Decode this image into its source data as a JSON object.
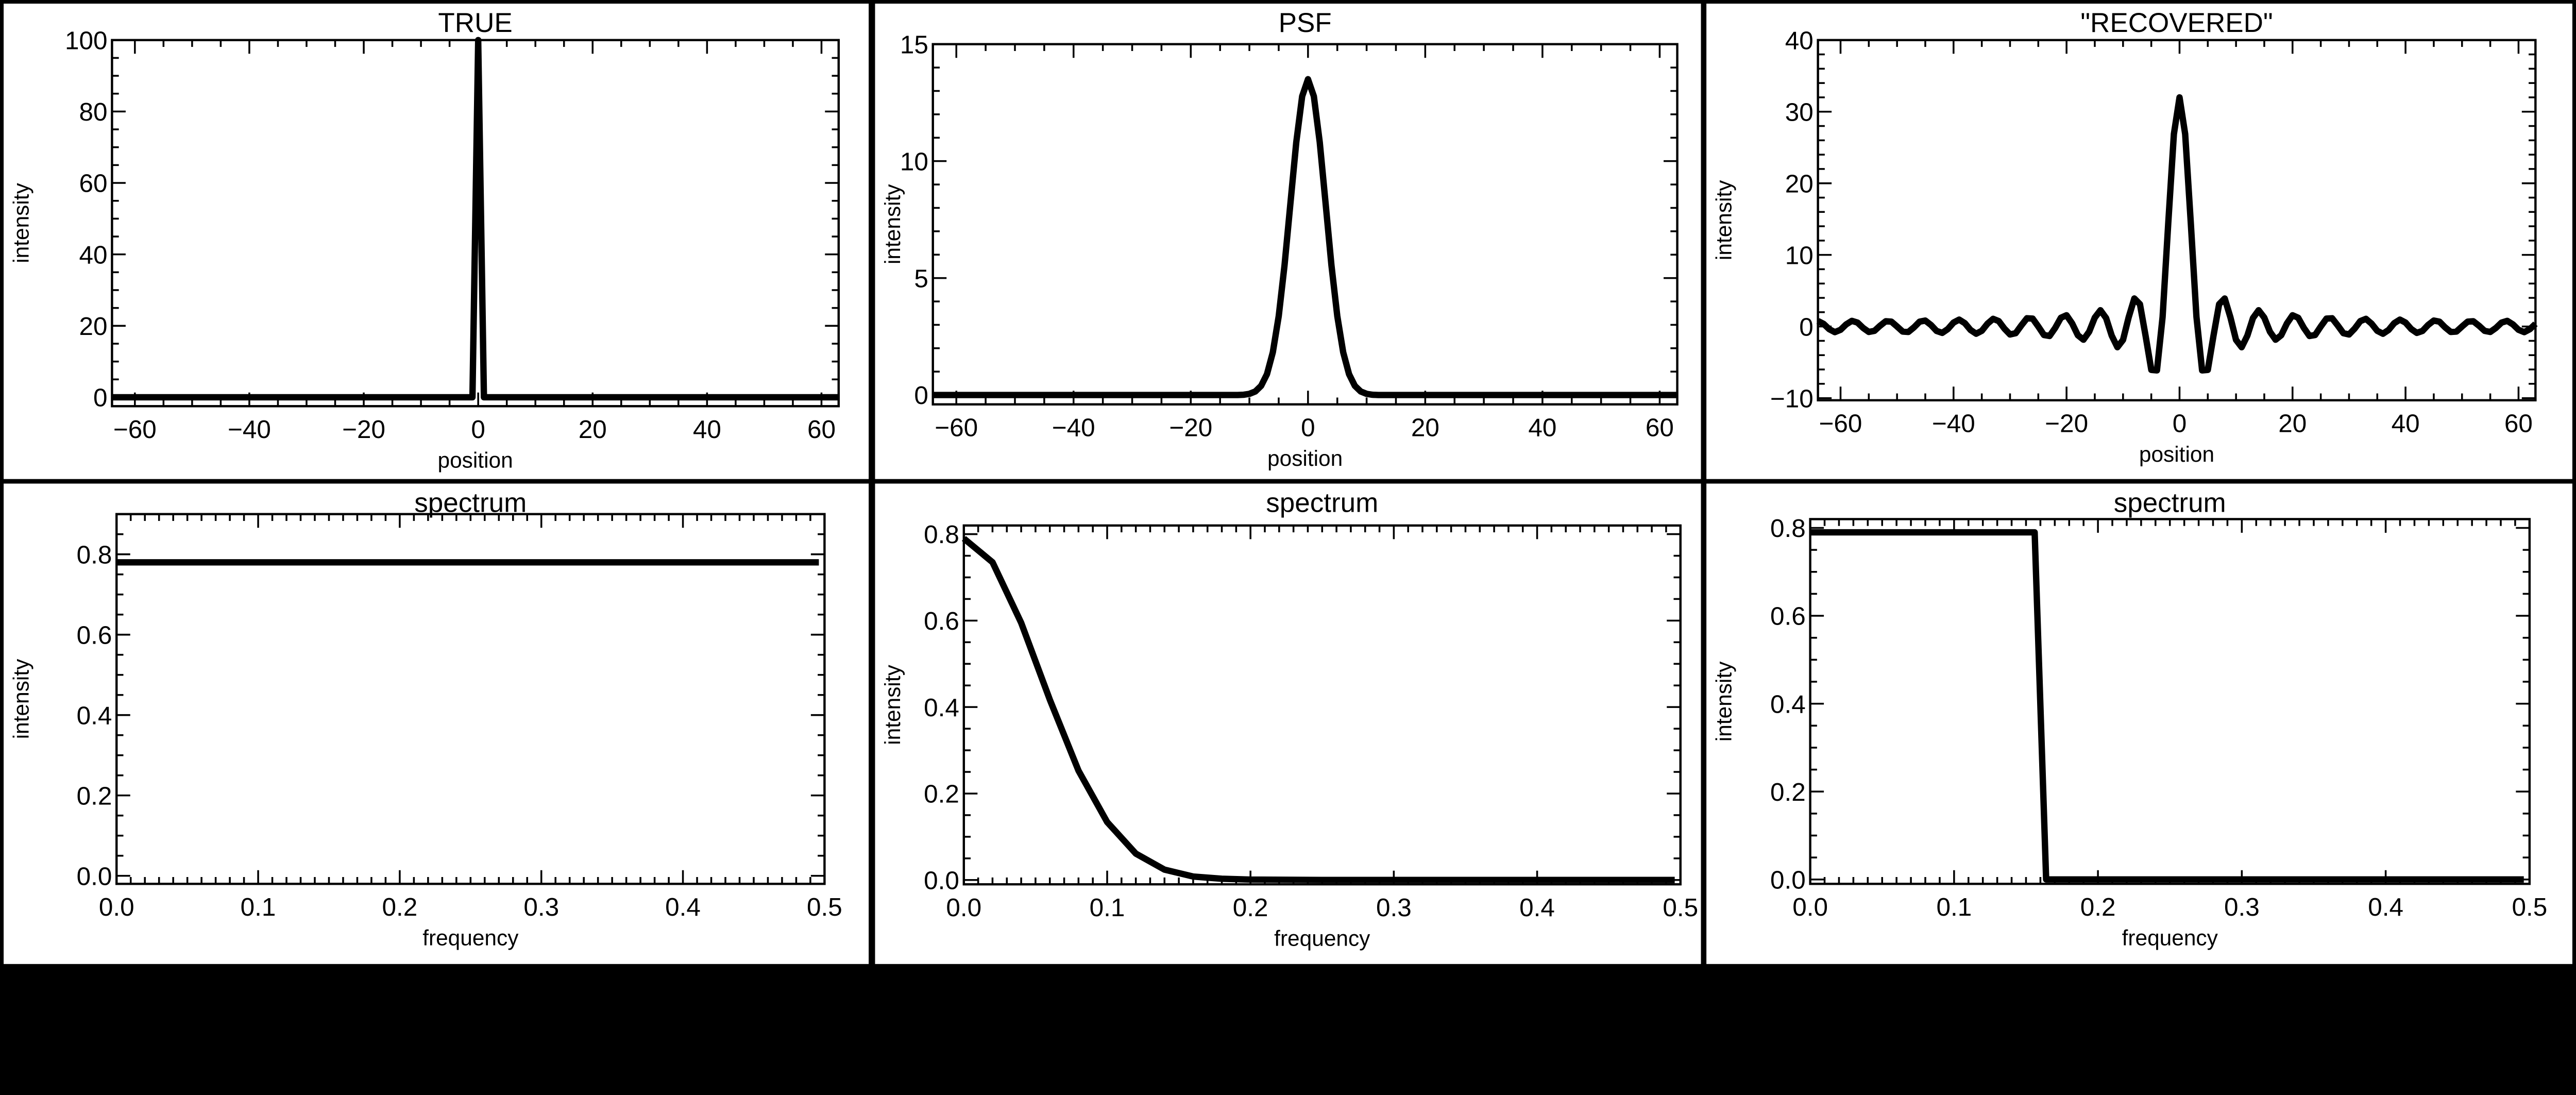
{
  "chart_data": [
    {
      "type": "line",
      "title": "TRUE",
      "xlabel": "position",
      "ylabel": "intensity",
      "xlim": [
        -64,
        63
      ],
      "ylim": [
        -2.5,
        100
      ],
      "xticks": [
        -60,
        -40,
        -20,
        0,
        20,
        40,
        60
      ],
      "yticks": [
        0,
        20,
        40,
        60,
        80,
        100
      ],
      "x_minor": 5,
      "y_minor": 5,
      "series": [
        {
          "x": [
            -64,
            -1,
            0,
            1,
            63
          ],
          "y": [
            0,
            0,
            100,
            0,
            0
          ]
        }
      ]
    },
    {
      "type": "line",
      "title": "PSF",
      "xlabel": "position",
      "ylabel": "intensity",
      "xlim": [
        -64,
        63
      ],
      "ylim": [
        -0.4,
        15
      ],
      "xticks": [
        -60,
        -40,
        -20,
        0,
        20,
        40,
        60
      ],
      "yticks": [
        0,
        5,
        10,
        15
      ],
      "x_minor": 5,
      "y_minor": 1,
      "series": [
        {
          "x": [
            -64,
            -12,
            -11,
            -10,
            -9,
            -8,
            -7,
            -6,
            -5,
            -4,
            -3,
            -2,
            -1,
            0,
            1,
            2,
            3,
            4,
            5,
            6,
            7,
            8,
            9,
            10,
            11,
            12,
            63
          ],
          "y": [
            0,
            0,
            0.01,
            0.05,
            0.15,
            0.39,
            0.89,
            1.83,
            3.37,
            5.55,
            8.19,
            10.81,
            12.77,
            13.5,
            12.77,
            10.81,
            8.19,
            5.55,
            3.37,
            1.83,
            0.89,
            0.39,
            0.15,
            0.05,
            0.01,
            0,
            0
          ]
        }
      ]
    },
    {
      "type": "line",
      "title": "\"RECOVERED\"",
      "xlabel": "position",
      "ylabel": "intensity",
      "xlim": [
        -64,
        63
      ],
      "ylim": [
        -10.3,
        40
      ],
      "xticks": [
        -60,
        -40,
        -20,
        0,
        20,
        40,
        60
      ],
      "yticks": [
        -10,
        0,
        10,
        20,
        30,
        40
      ],
      "x_minor": 5,
      "y_minor": 2,
      "series": [
        {
          "x": [
            -64,
            -63,
            -62,
            -61,
            -60,
            -59,
            -58,
            -57,
            -56,
            -55,
            -54,
            -53,
            -52,
            -51,
            -50,
            -49,
            -48,
            -47,
            -46,
            -45,
            -44,
            -43,
            -42,
            -41,
            -40,
            -39,
            -38,
            -37,
            -36,
            -35,
            -34,
            -33,
            -32,
            -31,
            -30,
            -29,
            -28,
            -27,
            -26,
            -25,
            -24,
            -23,
            -22,
            -21,
            -20,
            -19,
            -18,
            -17,
            -16,
            -15,
            -14,
            -13,
            -12,
            -11,
            -10,
            -9,
            -8,
            -7,
            -6,
            -5,
            -4,
            -3,
            -2,
            -1,
            0,
            1,
            2,
            3,
            4,
            5,
            6,
            7,
            8,
            9,
            10,
            11,
            12,
            13,
            14,
            15,
            16,
            17,
            18,
            19,
            20,
            21,
            22,
            23,
            24,
            25,
            26,
            27,
            28,
            29,
            30,
            31,
            32,
            33,
            34,
            35,
            36,
            37,
            38,
            39,
            40,
            41,
            42,
            43,
            44,
            45,
            46,
            47,
            48,
            49,
            50,
            51,
            52,
            53,
            54,
            55,
            56,
            57,
            58,
            59,
            60,
            61,
            62,
            63
          ],
          "y": [
            0.78,
            0.37,
            -0.38,
            -0.79,
            -0.46,
            0.3,
            0.79,
            0.55,
            -0.2,
            -0.76,
            -0.61,
            0.11,
            0.73,
            0.68,
            0,
            -0.71,
            -0.76,
            -0.11,
            0.68,
            0.83,
            0.22,
            -0.62,
            -0.89,
            -0.35,
            0.55,
            0.96,
            0.47,
            -0.48,
            -1.01,
            -0.6,
            0.39,
            1.07,
            0.76,
            -0.29,
            -1.11,
            -0.93,
            0.15,
            1.15,
            1.1,
            0,
            -1.19,
            -1.32,
            -0.19,
            1.22,
            1.57,
            0.42,
            -1.21,
            -1.84,
            -0.73,
            1.25,
            2.27,
            1.18,
            -1.28,
            -2.89,
            -1.87,
            1.29,
            3.91,
            3.11,
            -1.32,
            -6.06,
            -6.13,
            1.33,
            14.4,
            26.87,
            32,
            26.87,
            14.4,
            1.33,
            -6.13,
            -6.06,
            -1.32,
            3.11,
            3.91,
            1.29,
            -1.87,
            -2.89,
            -1.28,
            1.18,
            2.27,
            1.25,
            -0.73,
            -1.84,
            -1.21,
            0.42,
            1.57,
            1.22,
            -0.19,
            -1.32,
            -1.19,
            0,
            1.1,
            1.15,
            0.15,
            -0.93,
            -1.11,
            -0.29,
            0.76,
            1.07,
            0.39,
            -0.6,
            -1.01,
            -0.48,
            0.47,
            0.96,
            0.55,
            -0.35,
            -0.89,
            -0.62,
            0.22,
            0.83,
            0.68,
            -0.11,
            -0.76,
            -0.71,
            0,
            0.68,
            0.73,
            0.11,
            -0.61,
            -0.76,
            -0.2,
            0.55,
            0.79,
            0.3,
            -0.46,
            -0.79,
            -0.38,
            0.37
          ]
        }
      ]
    },
    {
      "type": "line",
      "title": "spectrum",
      "xlabel": "frequency",
      "ylabel": "intensity",
      "xlim": [
        0,
        0.5
      ],
      "ylim": [
        -0.02,
        0.9
      ],
      "xticks": [
        0.0,
        0.1,
        0.2,
        0.3,
        0.4,
        0.5
      ],
      "yticks": [
        0.0,
        0.2,
        0.4,
        0.6,
        0.8
      ],
      "x_minor": 0.01,
      "y_minor": 0.05,
      "series": [
        {
          "x": [
            0,
            0.496
          ],
          "y": [
            0.78,
            0.78
          ]
        }
      ]
    },
    {
      "type": "line",
      "title": "spectrum",
      "xlabel": "frequency",
      "ylabel": "intensity",
      "xlim": [
        0,
        0.5
      ],
      "ylim": [
        -0.01,
        0.82
      ],
      "xticks": [
        0.0,
        0.1,
        0.2,
        0.3,
        0.4,
        0.5
      ],
      "yticks": [
        0.0,
        0.2,
        0.4,
        0.6,
        0.8
      ],
      "x_minor": 0.01,
      "y_minor": 0.05,
      "series": [
        {
          "x": [
            0,
            0.02,
            0.04,
            0.06,
            0.08,
            0.1,
            0.12,
            0.14,
            0.16,
            0.18,
            0.2,
            0.25,
            0.496
          ],
          "y": [
            0.79,
            0.735,
            0.595,
            0.417,
            0.253,
            0.134,
            0.061,
            0.024,
            0.008,
            0.003,
            0.001,
            0,
            0
          ]
        }
      ]
    },
    {
      "type": "line",
      "title": "spectrum",
      "xlabel": "frequency",
      "ylabel": "intensity",
      "xlim": [
        0,
        0.5
      ],
      "ylim": [
        -0.01,
        0.82
      ],
      "xticks": [
        0.0,
        0.1,
        0.2,
        0.3,
        0.4,
        0.5
      ],
      "yticks": [
        0.0,
        0.2,
        0.4,
        0.6,
        0.8
      ],
      "x_minor": 0.01,
      "y_minor": 0.05,
      "series": [
        {
          "x": [
            0,
            0.156,
            0.164,
            0.496
          ],
          "y": [
            0.79,
            0.79,
            0,
            0
          ]
        }
      ]
    }
  ]
}
